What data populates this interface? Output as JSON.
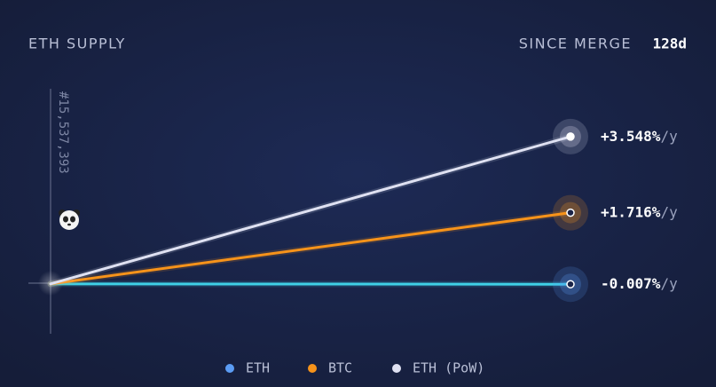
{
  "chart_data": {
    "type": "line",
    "title": "ETH SUPPLY",
    "period_label": "SINCE MERGE",
    "period_value": "128d",
    "block_label": "#15,537,393",
    "rate_unit": "/y",
    "ylim": [
      -1.2,
      4.7
    ],
    "series": [
      {
        "name": "ETH",
        "color": "#5b9cf4",
        "value": -0.007,
        "value_label": "-0.007%"
      },
      {
        "name": "BTC",
        "color": "#f7931a",
        "value": 1.716,
        "value_label": "+1.716%"
      },
      {
        "name": "ETH (PoW)",
        "color": "#dfe1f2",
        "value": 3.548,
        "value_label": "+3.548%"
      }
    ]
  }
}
